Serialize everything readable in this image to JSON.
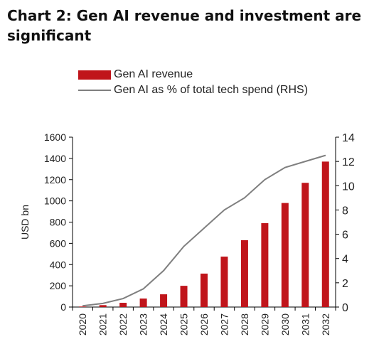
{
  "chart_data": {
    "type": "bar+line",
    "title": "Chart 2: Gen AI revenue and investment are significant",
    "categories": [
      "2020",
      "2021",
      "2022",
      "2023",
      "2024",
      "2025",
      "2026",
      "2027",
      "2028",
      "2029",
      "2030",
      "2031",
      "2032"
    ],
    "series": [
      {
        "name": "Gen AI revenue",
        "type": "bar",
        "axis": "left",
        "color": "#c0151b",
        "values": [
          5,
          18,
          40,
          80,
          120,
          200,
          315,
          475,
          630,
          790,
          980,
          1170,
          1370
        ]
      },
      {
        "name": "Gen AI as % of total tech spend (RHS)",
        "type": "line",
        "axis": "right",
        "color": "#7f7f7f",
        "values": [
          0.1,
          0.3,
          0.7,
          1.5,
          3.0,
          5.0,
          6.5,
          8.0,
          9.0,
          10.5,
          11.5,
          12.0,
          12.5
        ]
      }
    ],
    "ylabel": "USD bn",
    "ylim": [
      0,
      1600
    ],
    "yticks": [
      0,
      200,
      400,
      600,
      800,
      1000,
      1200,
      1400,
      1600
    ],
    "y2lim": [
      0,
      14
    ],
    "y2ticks": [
      0,
      2,
      4,
      6,
      8,
      10,
      12,
      14
    ],
    "legend_position": "top-left",
    "grid": false
  }
}
